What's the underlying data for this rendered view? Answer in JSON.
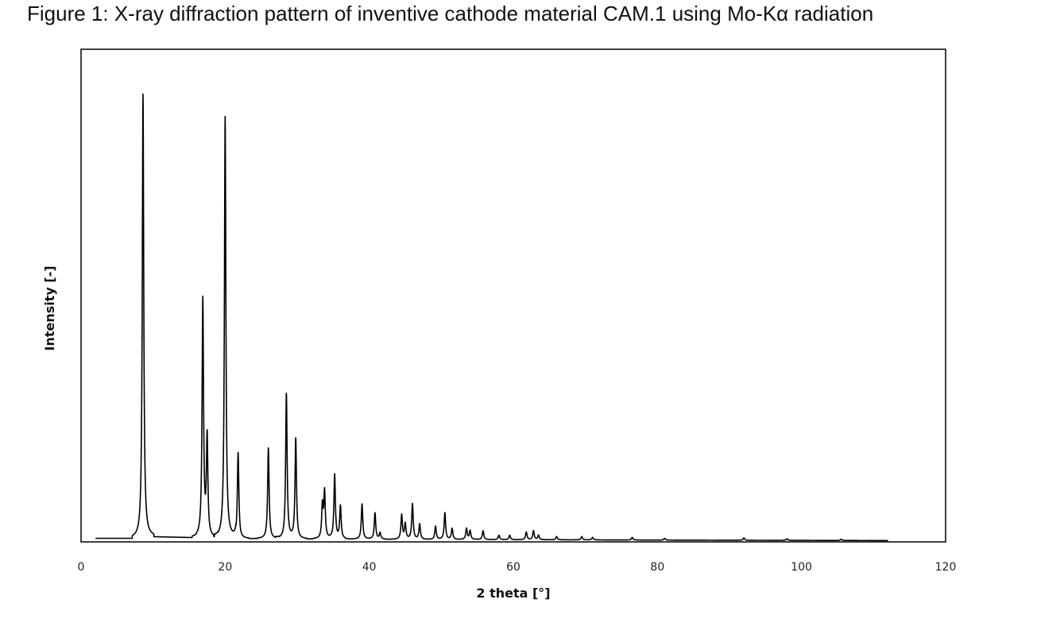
{
  "title": "Figure 1: X-ray diffraction pattern of inventive cathode material CAM.1 using Mo-Kα radiation",
  "chart_data": {
    "type": "line",
    "title": "Figure 1: X-ray diffraction pattern of inventive cathode material CAM.1 using Mo-Kα radiation",
    "xlabel": "2 theta [°]",
    "ylabel": "Intensity [-]",
    "xlim": [
      0,
      120
    ],
    "ylim": [
      0,
      110
    ],
    "xticks": [
      "0",
      "20",
      "40",
      "60",
      "80",
      "100",
      "120"
    ],
    "grid": false,
    "series": [
      {
        "x_range": [
          2,
          112
        ],
        "baseline": [
          [
            2,
            0.8
          ],
          [
            8,
            0.8
          ],
          [
            9,
            1.2
          ],
          [
            20,
            0.8
          ],
          [
            40,
            0.6
          ],
          [
            60,
            0.5
          ],
          [
            80,
            0.4
          ],
          [
            112,
            0.3
          ]
        ],
        "peaks": [
          {
            "x": 8.6,
            "y": 100
          },
          {
            "x": 16.9,
            "y": 54
          },
          {
            "x": 17.5,
            "y": 23
          },
          {
            "x": 20.0,
            "y": 95
          },
          {
            "x": 21.8,
            "y": 20
          },
          {
            "x": 26.0,
            "y": 21
          },
          {
            "x": 28.5,
            "y": 33
          },
          {
            "x": 29.8,
            "y": 23
          },
          {
            "x": 33.5,
            "y": 8
          },
          {
            "x": 33.8,
            "y": 11
          },
          {
            "x": 35.2,
            "y": 15
          },
          {
            "x": 36.0,
            "y": 8
          },
          {
            "x": 39.0,
            "y": 8.5
          },
          {
            "x": 40.8,
            "y": 6.5
          },
          {
            "x": 41.5,
            "y": 2
          },
          {
            "x": 44.5,
            "y": 6
          },
          {
            "x": 45.0,
            "y": 4
          },
          {
            "x": 46.0,
            "y": 8.5
          },
          {
            "x": 47.0,
            "y": 4
          },
          {
            "x": 49.2,
            "y": 3.5
          },
          {
            "x": 50.5,
            "y": 6.5
          },
          {
            "x": 51.5,
            "y": 3
          },
          {
            "x": 53.5,
            "y": 3
          },
          {
            "x": 54.0,
            "y": 2.5
          },
          {
            "x": 55.8,
            "y": 2.5
          },
          {
            "x": 58.0,
            "y": 1.5
          },
          {
            "x": 59.5,
            "y": 1.5
          },
          {
            "x": 61.8,
            "y": 2.2
          },
          {
            "x": 62.8,
            "y": 2.5
          },
          {
            "x": 63.5,
            "y": 1.5
          },
          {
            "x": 66.0,
            "y": 1.2
          },
          {
            "x": 69.5,
            "y": 1.2
          },
          {
            "x": 71.0,
            "y": 1.0
          },
          {
            "x": 76.5,
            "y": 1.0
          },
          {
            "x": 81.0,
            "y": 0.8
          },
          {
            "x": 92.0,
            "y": 0.9
          },
          {
            "x": 98.0,
            "y": 0.7
          },
          {
            "x": 105.5,
            "y": 0.6
          }
        ]
      }
    ]
  }
}
